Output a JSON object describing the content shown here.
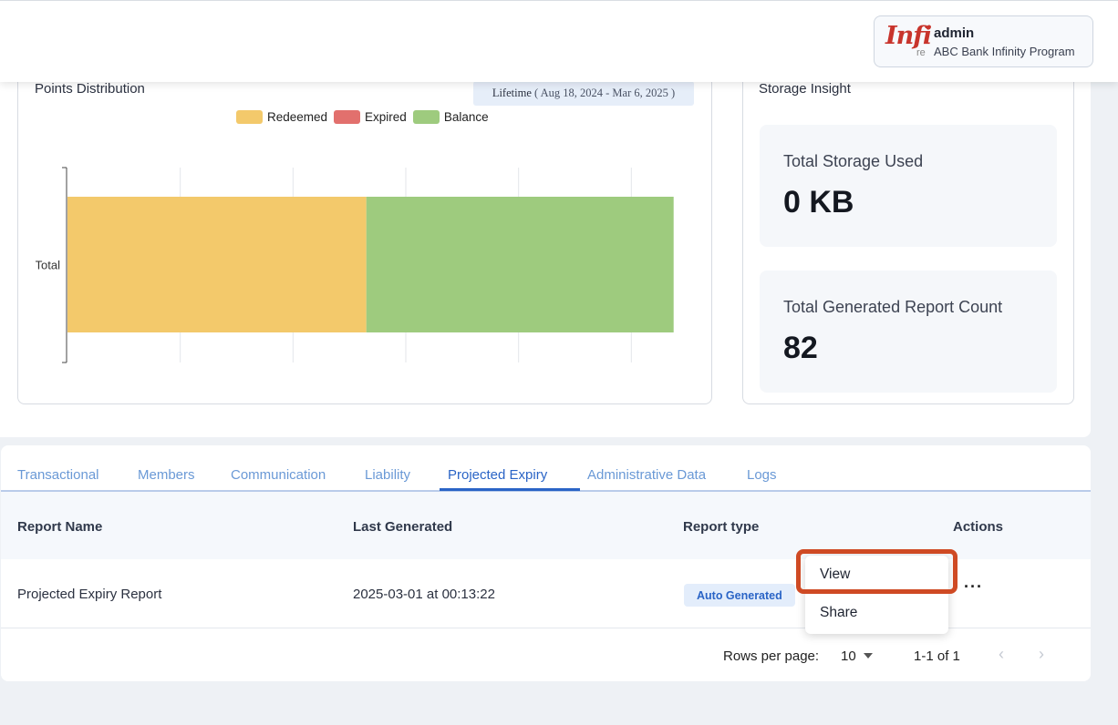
{
  "header": {
    "logo_text": "Infi",
    "logo_sub": "re",
    "user_name": "admin",
    "program_name": "ABC Bank Infinity Program"
  },
  "points_distribution": {
    "title": "Points Distribution",
    "badge_label": "Lifetime",
    "badge_range": "( Aug 18, 2024 - Mar 6, 2025 )"
  },
  "chart_data": {
    "type": "bar",
    "orientation": "horizontal",
    "stacked": true,
    "categories": [
      "Total"
    ],
    "series": [
      {
        "name": "Redeemed",
        "values": [
          53
        ],
        "color": "#f3c96b"
      },
      {
        "name": "Expired",
        "values": [
          0
        ],
        "color": "#e2706d"
      },
      {
        "name": "Balance",
        "values": [
          54.5
        ],
        "color": "#9ecb7e"
      }
    ],
    "xlim": [
      0,
      120
    ],
    "grid": true,
    "legend": "top",
    "category_label_display": "Total"
  },
  "storage": {
    "title": "Storage Insight",
    "total_storage_label": "Total Storage Used",
    "total_storage_value": "0 KB",
    "report_count_label": "Total Generated Report Count",
    "report_count_value": "82"
  },
  "tabs": [
    {
      "label": "Transactional"
    },
    {
      "label": "Members"
    },
    {
      "label": "Communication"
    },
    {
      "label": "Liability"
    },
    {
      "label": "Projected Expiry",
      "active": true
    },
    {
      "label": "Administrative Data"
    },
    {
      "label": "Logs"
    }
  ],
  "table": {
    "columns": [
      "Report Name",
      "Last Generated",
      "Report type",
      "Actions"
    ],
    "rows": [
      {
        "name": "Projected Expiry Report",
        "last_generated": "2025-03-01 at 00:13:22",
        "type": "Auto Generated",
        "actions": "···"
      }
    ]
  },
  "pagination": {
    "rows_per_page_label": "Rows per page:",
    "rows_per_page_value": "10",
    "range": "1-1 of 1",
    "prev": "‹",
    "next": "›"
  },
  "menu": {
    "items": [
      "View",
      "Share"
    ]
  },
  "colors": {
    "accent": "#2a64c6",
    "highlight": "#cf4a24"
  }
}
